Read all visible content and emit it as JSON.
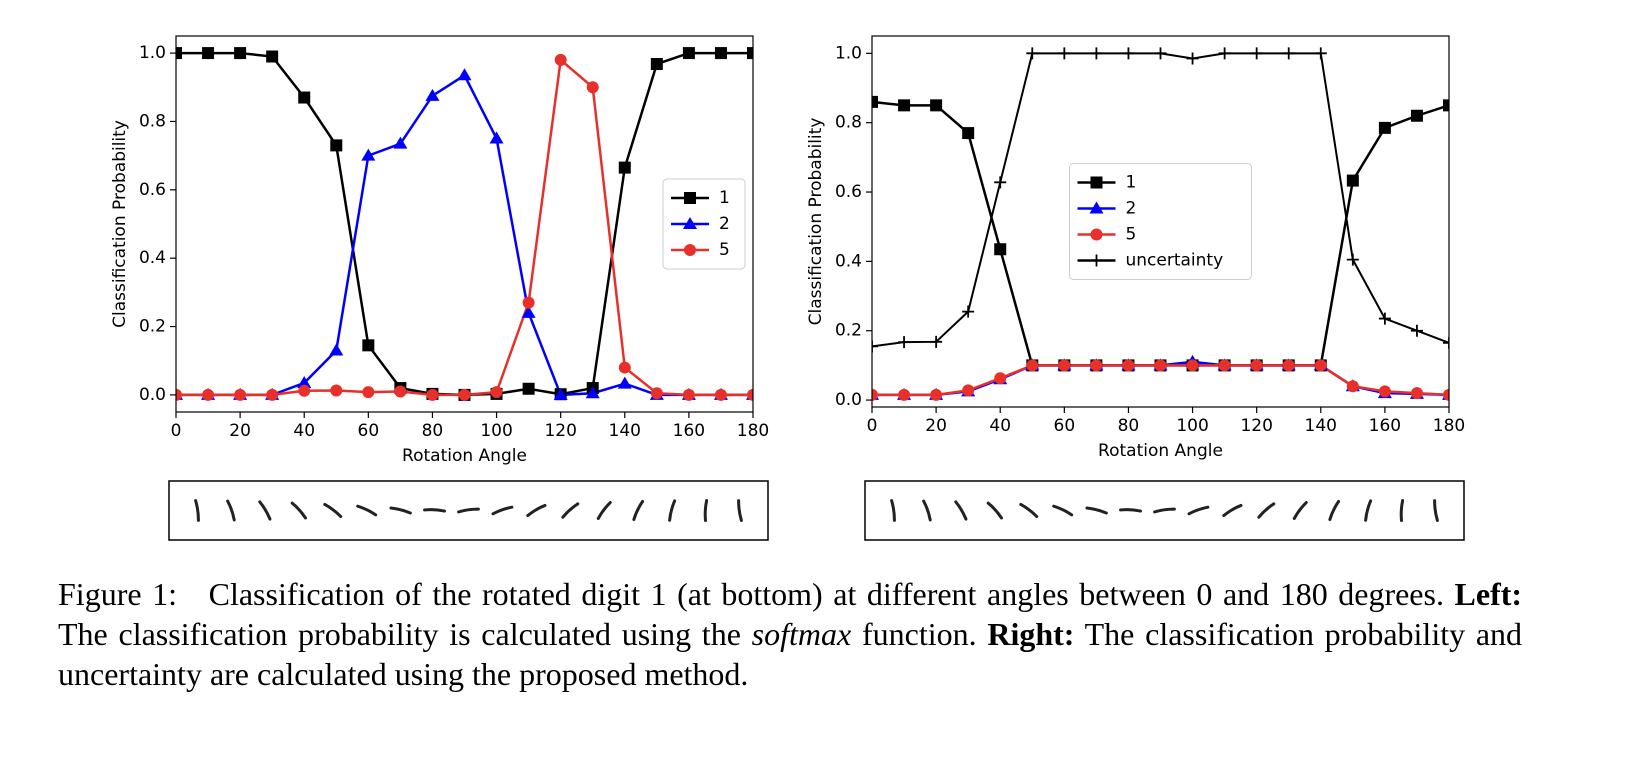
{
  "chart_data": [
    {
      "type": "line",
      "xlabel": "Rotation Angle",
      "ylabel": "Classification Probability",
      "x": [
        0,
        10,
        20,
        30,
        40,
        50,
        60,
        70,
        80,
        90,
        100,
        110,
        120,
        130,
        140,
        150,
        160,
        170,
        180
      ],
      "series": [
        {
          "name": "1",
          "color": "#000000",
          "marker": "square",
          "values": [
            1.0,
            1.0,
            1.0,
            0.99,
            0.87,
            0.73,
            0.145,
            0.02,
            0.003,
            0.0,
            0.003,
            0.018,
            0.002,
            0.02,
            0.665,
            0.968,
            1.0,
            1.0,
            1.0
          ]
        },
        {
          "name": "2",
          "color": "#0000ff",
          "marker": "triangle",
          "values": [
            0,
            0,
            0,
            0,
            0.035,
            0.13,
            0.7,
            0.735,
            0.875,
            0.935,
            0.75,
            0.24,
            0.0,
            0.005,
            0.033,
            0.0,
            0,
            0,
            0
          ]
        },
        {
          "name": "5",
          "color": "#e8302a",
          "marker": "circle",
          "values": [
            0,
            0,
            0,
            0,
            0.012,
            0.013,
            0.008,
            0.01,
            0.0,
            0.0,
            0.008,
            0.27,
            0.98,
            0.9,
            0.08,
            0.005,
            0,
            0,
            0
          ]
        }
      ],
      "xlim": [
        0,
        180
      ],
      "xticks": [
        0,
        20,
        40,
        60,
        80,
        100,
        120,
        140,
        160,
        180
      ],
      "ylim": [
        -0.05,
        1.05
      ],
      "yticks": [
        {
          "value": 0,
          "label": "0.0"
        },
        0.2,
        0.4,
        0.6,
        0.8,
        {
          "value": 1,
          "label": "1.0"
        }
      ],
      "legend": "center right"
    },
    {
      "type": "line",
      "xlabel": "Rotation Angle",
      "ylabel": "Classification Probability",
      "x": [
        0,
        10,
        20,
        30,
        40,
        50,
        60,
        70,
        80,
        90,
        100,
        110,
        120,
        130,
        140,
        150,
        160,
        170,
        180
      ],
      "series": [
        {
          "name": "1",
          "color": "#000000",
          "marker": "square",
          "values": [
            0.86,
            0.85,
            0.85,
            0.77,
            0.435,
            0.1,
            0.1,
            0.1,
            0.1,
            0.1,
            0.1,
            0.1,
            0.1,
            0.1,
            0.1,
            0.633,
            0.785,
            0.82,
            0.85
          ]
        },
        {
          "name": "2",
          "color": "#0000ff",
          "marker": "triangle",
          "values": [
            0.015,
            0.015,
            0.015,
            0.025,
            0.06,
            0.1,
            0.1,
            0.1,
            0.1,
            0.1,
            0.11,
            0.1,
            0.1,
            0.1,
            0.1,
            0.04,
            0.02,
            0.018,
            0.015
          ]
        },
        {
          "name": "5",
          "color": "#e8302a",
          "marker": "circle",
          "values": [
            0.015,
            0.015,
            0.015,
            0.028,
            0.063,
            0.1,
            0.1,
            0.1,
            0.1,
            0.1,
            0.1,
            0.1,
            0.1,
            0.1,
            0.1,
            0.04,
            0.025,
            0.02,
            0.015
          ]
        },
        {
          "name": "uncertainty",
          "color": "#000000",
          "marker": "plus",
          "values": [
            0.155,
            0.167,
            0.168,
            0.255,
            0.628,
            1.0,
            1.0,
            1.0,
            1.0,
            1.0,
            0.985,
            1.0,
            1.0,
            1.0,
            1.0,
            0.405,
            0.235,
            0.2,
            0.165
          ]
        }
      ],
      "xlim": [
        0,
        180
      ],
      "xticks": [
        0,
        20,
        40,
        60,
        80,
        100,
        120,
        140,
        160,
        180
      ],
      "ylim": [
        -0.02,
        1.05
      ],
      "yticks": [
        {
          "value": 0,
          "label": "0.0"
        },
        0.2,
        0.4,
        0.6,
        0.8,
        {
          "value": 1,
          "label": "1.0"
        }
      ],
      "legend": "center"
    }
  ],
  "caption": {
    "label": "Figure 1:",
    "text": "Classification of the rotated digit 1 (at bottom) at different angles between 0 and 180 degrees.",
    "left_label": "Left:",
    "left_text": "The classification probability is calculated using the",
    "left_emph": "softmax",
    "left_end": "function.",
    "right_label": "Right:",
    "right_text": "The classification probability and uncertainty are calculated using the proposed method."
  }
}
